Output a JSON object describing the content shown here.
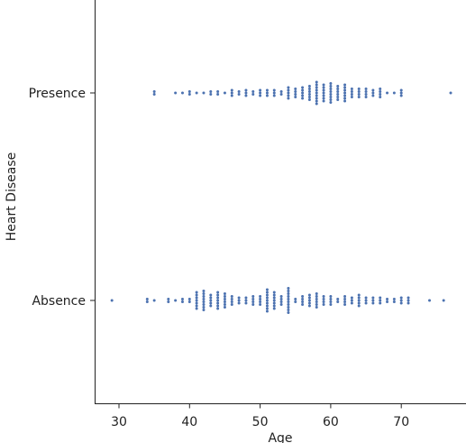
{
  "chart_data": {
    "type": "scatter",
    "subtype": "swarm",
    "xlabel": "Age",
    "ylabel": "Heart Disease",
    "xlim": [
      26.8,
      80
    ],
    "x_ticks": [
      30,
      40,
      50,
      60,
      70
    ],
    "categories": [
      "Presence",
      "Absence"
    ],
    "grid": false,
    "marker_color": "#4c72b0",
    "series": [
      {
        "name": "Presence",
        "counts": [
          [
            35,
            2
          ],
          [
            38,
            1
          ],
          [
            39,
            1
          ],
          [
            40,
            2
          ],
          [
            41,
            1
          ],
          [
            42,
            1
          ],
          [
            43,
            2
          ],
          [
            44,
            2
          ],
          [
            45,
            1
          ],
          [
            46,
            3
          ],
          [
            47,
            2
          ],
          [
            48,
            3
          ],
          [
            49,
            2
          ],
          [
            50,
            3
          ],
          [
            51,
            3
          ],
          [
            52,
            3
          ],
          [
            53,
            2
          ],
          [
            54,
            5
          ],
          [
            55,
            4
          ],
          [
            56,
            5
          ],
          [
            57,
            6
          ],
          [
            58,
            9
          ],
          [
            59,
            7
          ],
          [
            60,
            8
          ],
          [
            61,
            6
          ],
          [
            62,
            7
          ],
          [
            63,
            4
          ],
          [
            64,
            4
          ],
          [
            65,
            4
          ],
          [
            66,
            3
          ],
          [
            67,
            4
          ],
          [
            68,
            1
          ],
          [
            69,
            1
          ],
          [
            70,
            3
          ],
          [
            77,
            1
          ]
        ]
      },
      {
        "name": "Absence",
        "counts": [
          [
            29,
            1
          ],
          [
            34,
            2
          ],
          [
            35,
            1
          ],
          [
            37,
            2
          ],
          [
            38,
            1
          ],
          [
            39,
            2
          ],
          [
            40,
            2
          ],
          [
            41,
            7
          ],
          [
            42,
            8
          ],
          [
            43,
            5
          ],
          [
            44,
            7
          ],
          [
            45,
            6
          ],
          [
            46,
            4
          ],
          [
            47,
            3
          ],
          [
            48,
            3
          ],
          [
            49,
            4
          ],
          [
            50,
            4
          ],
          [
            51,
            9
          ],
          [
            52,
            7
          ],
          [
            53,
            4
          ],
          [
            54,
            10
          ],
          [
            55,
            2
          ],
          [
            56,
            4
          ],
          [
            57,
            5
          ],
          [
            58,
            6
          ],
          [
            59,
            4
          ],
          [
            60,
            4
          ],
          [
            61,
            2
          ],
          [
            62,
            4
          ],
          [
            63,
            3
          ],
          [
            64,
            5
          ],
          [
            65,
            3
          ],
          [
            66,
            3
          ],
          [
            67,
            3
          ],
          [
            68,
            2
          ],
          [
            69,
            2
          ],
          [
            70,
            3
          ],
          [
            71,
            3
          ],
          [
            74,
            1
          ],
          [
            76,
            1
          ]
        ]
      }
    ]
  }
}
